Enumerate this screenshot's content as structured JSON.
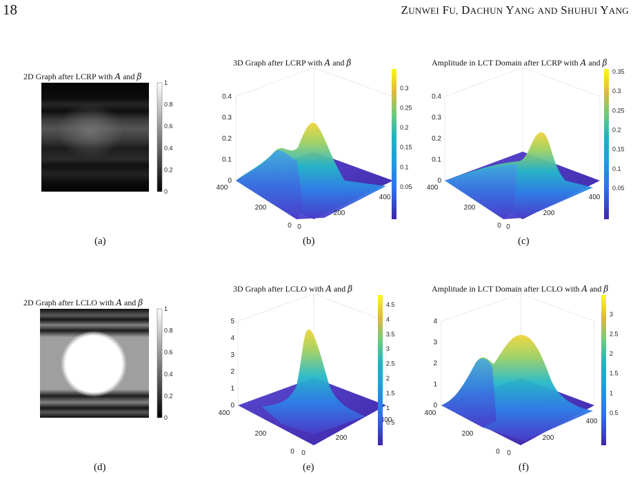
{
  "header": {
    "page_number": "18",
    "running_head": {
      "w1_cap": "Z",
      "w1_rest": "UNWEI",
      "w2_cap": "F",
      "w2_rest": "U,",
      "w3_cap": "D",
      "w3_rest": "ACHUN",
      "w4_cap": "Y",
      "w4_rest": "ANG",
      "w5_rest": "AND",
      "w6_cap": "S",
      "w6_rest": "HUHUI",
      "w7_cap": "Y",
      "w7_rest": "ANG"
    }
  },
  "colors": {
    "parula_low": "#3e26a8",
    "parula_mid": "#20b5c0",
    "parula_high": "#f9fb15"
  },
  "panels": {
    "a": {
      "title_prefix": "2D Graph after LCRP with ",
      "title_A": "A",
      "title_and": " and ",
      "title_beta": "β",
      "caption": "(a)",
      "colorbar_ticks": [
        "1",
        "0.8",
        "0.6",
        "0.4",
        "0.2",
        "0"
      ]
    },
    "b": {
      "title_prefix": "3D Graph after LCRP with ",
      "title_A": "A",
      "title_and": " and ",
      "title_beta": "β",
      "caption": "(b)",
      "z_ticks": [
        "0.4",
        "0.3",
        "0.2",
        "0.1",
        "0"
      ],
      "left_ticks": [
        "400",
        "200",
        "0"
      ],
      "right_ticks": [
        "0",
        "200",
        "400"
      ],
      "colorbar_ticks": [
        "0.3",
        "0.25",
        "0.2",
        "0.15",
        "0.1",
        "0.05"
      ]
    },
    "c": {
      "title_prefix": "Amplitude in LCT Domain after LCRP with ",
      "title_A": "A",
      "title_and": " and ",
      "title_beta": "β",
      "caption": "(c)",
      "z_ticks": [
        "0.4",
        "0.3",
        "0.2",
        "0.1",
        "0"
      ],
      "left_ticks": [
        "400",
        "200",
        "0"
      ],
      "right_ticks": [
        "0",
        "200",
        "400"
      ],
      "colorbar_ticks": [
        "0.35",
        "0.3",
        "0.25",
        "0.2",
        "0.15",
        "0.1",
        "0.05"
      ]
    },
    "d": {
      "title_prefix": "2D Graph after LCLO with ",
      "title_A": "A",
      "title_and": " and ",
      "title_beta": "β",
      "caption": "(d)",
      "colorbar_ticks": [
        "1",
        "0.8",
        "0.6",
        "0.4",
        "0.2",
        "0"
      ]
    },
    "e": {
      "title_prefix": "3D Graph after LCLO with ",
      "title_A": "A",
      "title_and": " and ",
      "title_beta": "β",
      "caption": "(e)",
      "z_ticks": [
        "5",
        "4",
        "3",
        "2",
        "1",
        "0"
      ],
      "left_ticks": [
        "400",
        "200",
        "0"
      ],
      "right_ticks": [
        "0",
        "200",
        "400"
      ],
      "colorbar_ticks": [
        "4.5",
        "4",
        "3.5",
        "3",
        "2.5",
        "2",
        "1.5",
        "1",
        "0.5"
      ]
    },
    "f": {
      "title_prefix": "Amplitude in LCT Domain after LCLO with ",
      "title_A": "A",
      "title_and": " and ",
      "title_beta": "β",
      "caption": "(f)",
      "z_ticks": [
        "4",
        "3",
        "2",
        "1",
        "0"
      ],
      "left_ticks": [
        "400",
        "200",
        "0"
      ],
      "right_ticks": [
        "0",
        "200",
        "400"
      ],
      "colorbar_ticks": [
        "3",
        "2.5",
        "2",
        "1.5",
        "1",
        "0.5"
      ]
    }
  }
}
